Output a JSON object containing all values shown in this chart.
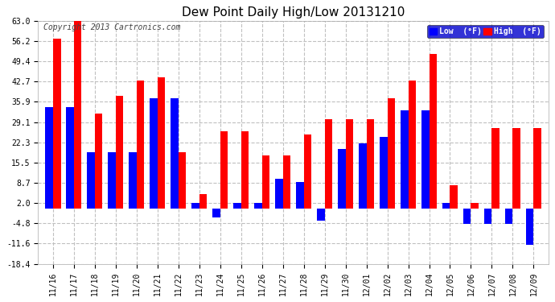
{
  "title": "Dew Point Daily High/Low 20131210",
  "copyright": "Copyright 2013 Cartronics.com",
  "dates": [
    "11/16",
    "11/17",
    "11/18",
    "11/19",
    "11/20",
    "11/21",
    "11/22",
    "11/23",
    "11/24",
    "11/25",
    "11/26",
    "11/27",
    "11/28",
    "11/29",
    "11/30",
    "12/01",
    "12/02",
    "12/03",
    "12/04",
    "12/05",
    "12/06",
    "12/07",
    "12/08",
    "12/09"
  ],
  "high": [
    57,
    63,
    32,
    38,
    43,
    44,
    19,
    5,
    26,
    26,
    18,
    18,
    25,
    30,
    30,
    30,
    37,
    43,
    52,
    8,
    2,
    27,
    27,
    27
  ],
  "low": [
    34,
    34,
    19,
    19,
    19,
    37,
    37,
    2,
    -3,
    2,
    2,
    10,
    9,
    -4,
    20,
    22,
    24,
    33,
    33,
    2,
    -5,
    -5,
    -5,
    -12
  ],
  "ylim": [
    -18.4,
    63.0
  ],
  "yticks": [
    -18.4,
    -11.6,
    -4.8,
    2.0,
    8.7,
    15.5,
    22.3,
    29.1,
    35.9,
    42.7,
    49.4,
    56.2,
    63.0
  ],
  "ytick_labels": [
    "-18.4",
    "-11.6",
    "-4.8",
    "2.0",
    "8.7",
    "15.5",
    "22.3",
    "29.1",
    "35.9",
    "42.7",
    "49.4",
    "56.2",
    "63.0"
  ],
  "bar_width": 0.38,
  "high_color": "#ff0000",
  "low_color": "#0000ff",
  "bg_color": "#ffffff",
  "grid_color": "#c0c0c0",
  "title_fontsize": 11,
  "tick_fontsize": 7,
  "copyright_fontsize": 7,
  "legend_high_label": "High  (°F)",
  "legend_low_label": "Low  (°F)"
}
